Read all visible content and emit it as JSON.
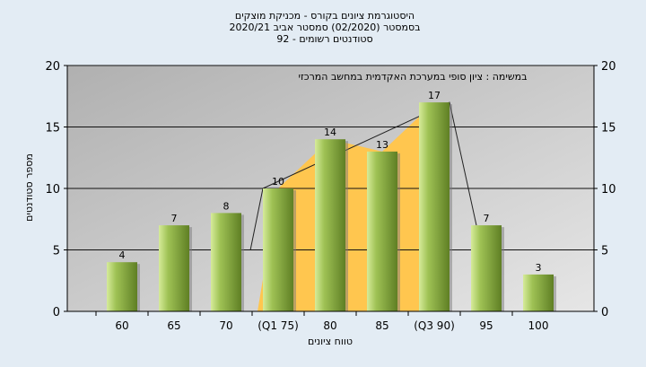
{
  "chart_data": {
    "type": "bar",
    "title_lines": [
      "היסטוגרמת ציונים בקורס - מכניקת מוצקים",
      "בסמסטר  (02/2020)  סמסטר אביב 2020/21",
      "סטודנטים רשומים - 92"
    ],
    "annotation": "במשימה : ציון סופי במערכת האקדמית במחשב המרכזי",
    "xlabel": "טווח ציונים",
    "ylabel": "מספר סטודנטים",
    "categories": [
      "60",
      "65",
      "70",
      "(Q1 75)",
      "80",
      "85",
      "(Q3 90)",
      "95",
      "100"
    ],
    "values": [
      4,
      7,
      8,
      10,
      14,
      13,
      17,
      7,
      3
    ],
    "ylim": [
      0,
      20
    ],
    "yticks": [
      0,
      5,
      10,
      15,
      20
    ],
    "iqr_band": {
      "from_index": 3,
      "to_index": 6
    },
    "grid": true,
    "colors": {
      "bar_light": "#d6eb9a",
      "bar_mid": "#9fc255",
      "bar_dark": "#5f7f24",
      "plot_bg": "#c3c3c3",
      "iqr_fill": "#ffc64f",
      "grid": "#111111"
    }
  }
}
